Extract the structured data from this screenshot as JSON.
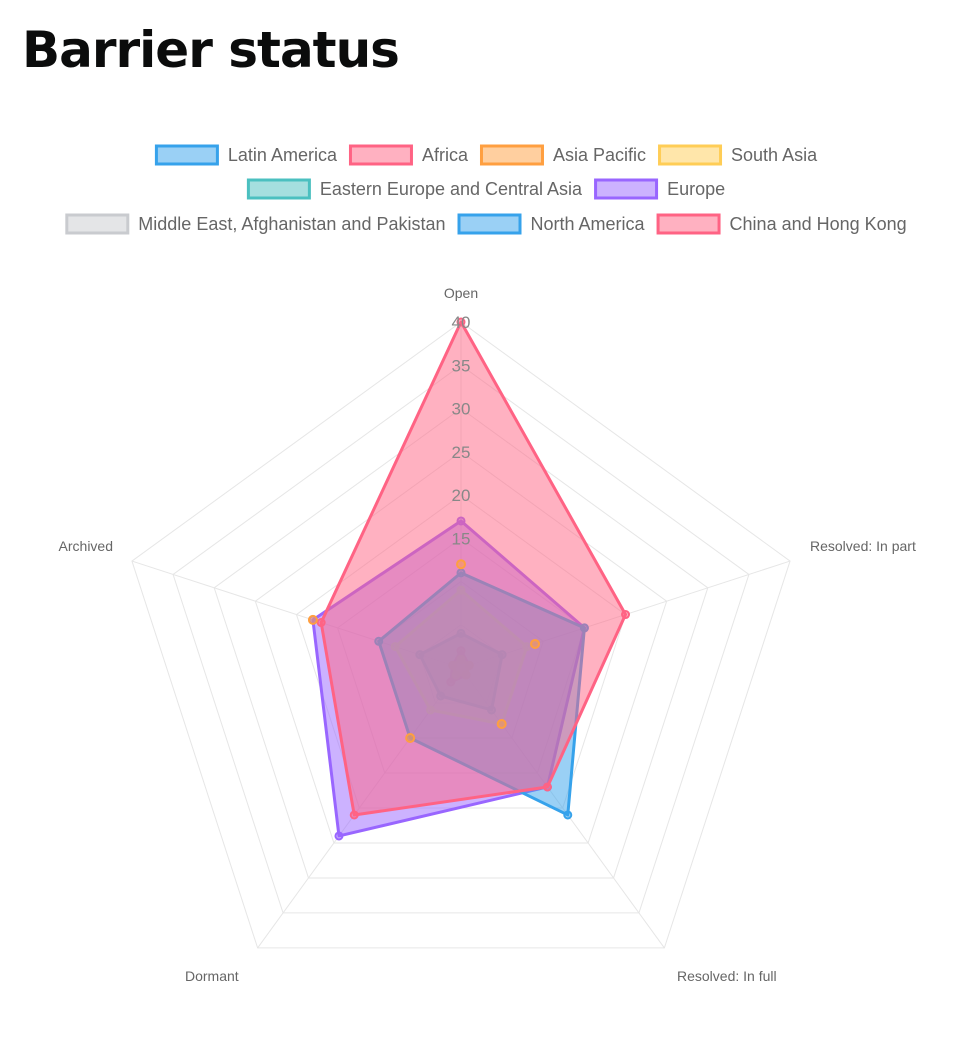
{
  "page": {
    "title": "Barrier status"
  },
  "chart_data": {
    "type": "radar",
    "axes": [
      "Open",
      "Resolved: In part",
      "Resolved: In full",
      "Dormant",
      "Archived"
    ],
    "r_range": [
      0,
      40
    ],
    "r_ticks": [
      "15",
      "20",
      "25",
      "30",
      "35",
      "40"
    ],
    "grid": true,
    "legend_position": "top",
    "series": [
      {
        "name": "Latin America",
        "values": [
          1,
          1,
          1,
          1,
          1
        ],
        "border": "#36a2eb",
        "fill": "rgba(54,162,235,0.5)"
      },
      {
        "name": "Africa",
        "values": [
          2,
          1,
          1,
          2,
          1
        ],
        "border": "#ff6384",
        "fill": "rgba(255,99,132,0.5)"
      },
      {
        "name": "Asia Pacific",
        "values": [
          1,
          1,
          1,
          1,
          1
        ],
        "border": "#ff9f40",
        "fill": "rgba(255,159,64,0.5)"
      },
      {
        "name": "South Asia",
        "values": [
          1,
          1,
          1,
          1,
          1
        ],
        "border": "#ffcd56",
        "fill": "rgba(255,205,86,0.5)"
      },
      {
        "name": "Eastern Europe and Central Asia",
        "values": [
          4,
          5,
          6,
          4,
          5
        ],
        "border": "#4bc0c0",
        "fill": "rgba(75,192,192,0.5)"
      },
      {
        "name": "Europe",
        "values": [
          17,
          15,
          17,
          24,
          18
        ],
        "border": "#9966ff",
        "fill": "rgba(153,102,255,0.5)"
      },
      {
        "name": "Middle East, Afghanistan and Pakistan",
        "values": [
          9,
          8,
          8,
          6,
          8
        ],
        "border": "#c9cbcf",
        "fill": "rgba(201,203,207,0.5)"
      },
      {
        "name": "North America",
        "values": [
          11,
          15,
          21,
          10,
          10
        ],
        "border": "#36a2eb",
        "fill": "rgba(54,162,235,0.5)"
      },
      {
        "name": "China and Hong Kong",
        "values": [
          40,
          20,
          17,
          21,
          17
        ],
        "border": "#ff6384",
        "fill": "rgba(255,99,132,0.5)"
      }
    ],
    "extra_points": [
      {
        "name": "Asia Pacific",
        "values": [
          12,
          9,
          8,
          10,
          18
        ]
      }
    ]
  }
}
